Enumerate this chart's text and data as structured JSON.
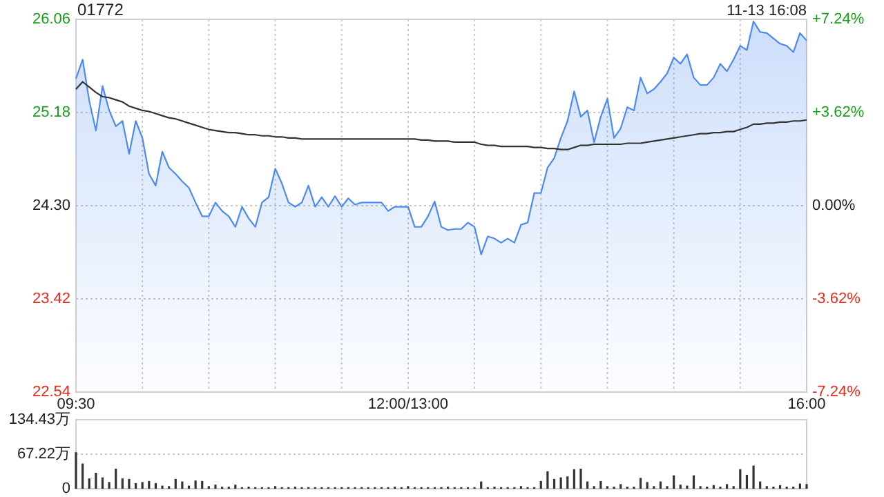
{
  "chart_data": [
    {
      "type": "line",
      "title": "01772",
      "annotations": [
        "11-13 16:08"
      ],
      "categories": [
        "09:30",
        null,
        null,
        null,
        null,
        null,
        null,
        null,
        null,
        null,
        null,
        null,
        null,
        null,
        null,
        null,
        null,
        null,
        null,
        null,
        null,
        null,
        null,
        null,
        null,
        null,
        null,
        null,
        null,
        null,
        null,
        null,
        null,
        null,
        null,
        null,
        null,
        null,
        null,
        null,
        null,
        null,
        null,
        null,
        null,
        null,
        null,
        null,
        null,
        null,
        "12:00/13:00",
        null,
        null,
        null,
        null,
        null,
        null,
        null,
        null,
        null,
        null,
        null,
        null,
        null,
        null,
        null,
        null,
        null,
        null,
        null,
        null,
        null,
        null,
        null,
        null,
        null,
        null,
        null,
        null,
        null,
        null,
        null,
        null,
        null,
        null,
        null,
        null,
        null,
        null,
        null,
        null,
        null,
        null,
        null,
        null,
        null,
        null,
        null,
        null,
        null,
        null,
        null,
        null,
        null,
        null,
        null,
        null,
        null,
        null,
        null,
        "16:00"
      ],
      "series": [
        {
          "type": "area",
          "color": "#4d8af0",
          "values": [
            25.5,
            25.68,
            25.29,
            25.01,
            25.43,
            25.2,
            25.05,
            25.1,
            24.79,
            25.1,
            24.94,
            24.6,
            24.49,
            24.81,
            24.66,
            24.6,
            24.53,
            24.47,
            24.33,
            24.2,
            24.2,
            24.33,
            24.25,
            24.2,
            24.1,
            24.29,
            24.18,
            24.1,
            24.33,
            24.38,
            24.65,
            24.51,
            24.33,
            24.29,
            24.33,
            24.49,
            24.29,
            24.38,
            24.29,
            24.39,
            24.29,
            24.37,
            24.31,
            24.33,
            24.33,
            24.33,
            24.33,
            24.25,
            24.29,
            24.29,
            24.29,
            24.1,
            24.1,
            24.2,
            24.34,
            24.1,
            24.07,
            24.08,
            24.08,
            24.14,
            24.1,
            23.84,
            24.01,
            23.99,
            23.95,
            23.99,
            23.95,
            24.12,
            24.14,
            24.42,
            24.42,
            24.66,
            24.75,
            24.94,
            25.1,
            25.38,
            25.14,
            25.2,
            24.9,
            25.14,
            25.31,
            24.94,
            25.03,
            25.23,
            25.2,
            25.51,
            25.36,
            25.4,
            25.47,
            25.55,
            25.7,
            25.64,
            25.73,
            25.51,
            25.44,
            25.44,
            25.51,
            25.64,
            25.57,
            25.68,
            25.81,
            25.77,
            26.04,
            25.94,
            25.93,
            25.88,
            25.83,
            25.81,
            25.75,
            25.93,
            25.86
          ]
        },
        {
          "type": "line",
          "color": "#333333",
          "values": [
            25.4,
            25.47,
            25.42,
            25.37,
            25.33,
            25.32,
            25.3,
            25.28,
            25.24,
            25.22,
            25.2,
            25.19,
            25.17,
            25.15,
            25.13,
            25.12,
            25.1,
            25.08,
            25.06,
            25.04,
            25.02,
            25.01,
            25.0,
            24.99,
            24.99,
            24.98,
            24.97,
            24.97,
            24.96,
            24.96,
            24.95,
            24.95,
            24.94,
            24.94,
            24.93,
            24.93,
            24.93,
            24.93,
            24.93,
            24.93,
            24.93,
            24.93,
            24.93,
            24.93,
            24.93,
            24.93,
            24.93,
            24.93,
            24.93,
            24.93,
            24.93,
            24.93,
            24.92,
            24.92,
            24.91,
            24.91,
            24.91,
            24.9,
            24.9,
            24.9,
            24.9,
            24.88,
            24.87,
            24.87,
            24.86,
            24.86,
            24.86,
            24.86,
            24.86,
            24.85,
            24.85,
            24.84,
            24.84,
            24.83,
            24.83,
            24.85,
            24.87,
            24.87,
            24.88,
            24.88,
            24.88,
            24.88,
            24.88,
            24.89,
            24.89,
            24.89,
            24.9,
            24.91,
            24.92,
            24.93,
            24.94,
            24.95,
            24.96,
            24.97,
            24.98,
            24.98,
            24.99,
            24.99,
            25.0,
            25.0,
            25.02,
            25.04,
            25.07,
            25.07,
            25.08,
            25.08,
            25.09,
            25.09,
            25.1,
            25.1,
            25.11
          ]
        }
      ],
      "ylim": [
        22.54,
        26.06
      ],
      "yticks": [
        22.54,
        23.42,
        {
          "value": 24.3,
          "label": "24.30"
        },
        25.18,
        26.06
      ],
      "y2lim": [
        -7.24,
        7.24
      ],
      "y2ticks": [
        {
          "value": -7.24,
          "label": "-7.24%"
        },
        {
          "value": -3.62,
          "label": "-3.62%"
        },
        {
          "value": 0,
          "label": "0.00%"
        },
        {
          "value": 3.62,
          "label": "+3.62%"
        },
        {
          "value": 7.24,
          "label": "+7.24%"
        }
      ],
      "grid": true
    },
    {
      "type": "bar",
      "color": "#333333",
      "categories": [
        null,
        null,
        null,
        null,
        null,
        null,
        null,
        null,
        null,
        null,
        null,
        null,
        null,
        null,
        null,
        null,
        null,
        null,
        null,
        null,
        null,
        null,
        null,
        null,
        null,
        null,
        null,
        null,
        null,
        null,
        null,
        null,
        null,
        null,
        null,
        null,
        null,
        null,
        null,
        null,
        null,
        null,
        null,
        null,
        null,
        null,
        null,
        null,
        null,
        null,
        null,
        null,
        null,
        null,
        null,
        null,
        null,
        null,
        null,
        null,
        null,
        null,
        null,
        null,
        null,
        null,
        null,
        null,
        null,
        null,
        null,
        null,
        null,
        null,
        null,
        null,
        null,
        null,
        null,
        null,
        null,
        null,
        null,
        null,
        null,
        null,
        null,
        null,
        null,
        null,
        null,
        null,
        null,
        null,
        null,
        null,
        null,
        null,
        null,
        null,
        null,
        null,
        null,
        null,
        null,
        null,
        null,
        null,
        null,
        null,
        null
      ],
      "values": [
        71,
        49,
        20,
        31,
        22,
        13,
        39,
        20,
        19,
        11,
        13,
        15,
        11,
        6,
        5,
        19,
        14,
        6,
        16,
        15,
        5,
        8,
        4,
        4,
        8,
        3,
        4,
        3,
        3,
        3,
        5,
        3,
        3,
        4,
        3,
        3,
        3,
        3,
        3,
        3,
        3,
        3,
        3,
        3,
        3,
        3,
        3,
        3,
        4,
        3,
        5,
        3,
        3,
        3,
        3,
        3,
        4,
        3,
        3,
        3,
        3,
        14,
        3,
        4,
        3,
        3,
        3,
        5,
        3,
        3,
        15,
        34,
        19,
        22,
        24,
        38,
        39,
        14,
        5,
        15,
        5,
        4,
        9,
        4,
        4,
        21,
        13,
        5,
        14,
        5,
        26,
        8,
        6,
        26,
        5,
        4,
        7,
        4,
        9,
        5,
        38,
        27,
        45,
        14,
        5,
        4,
        7,
        4,
        4,
        10,
        9
      ],
      "ylim": [
        0,
        134.43
      ],
      "yticks": [
        0,
        {
          "value": 67.22,
          "label": "67.22万"
        },
        {
          "value": 134.43,
          "label": "134.43万"
        }
      ],
      "grid": "y",
      "tick_labels": "y"
    }
  ]
}
